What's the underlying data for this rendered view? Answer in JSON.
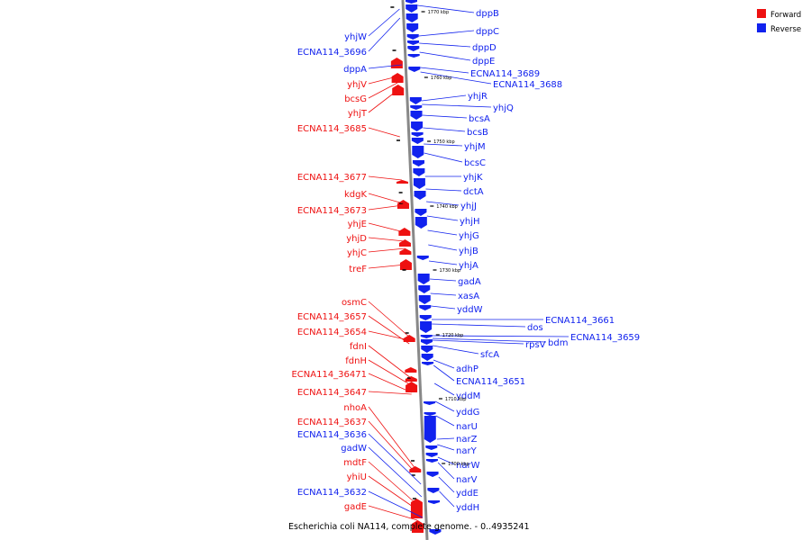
{
  "caption": "Escherichia coli NA114, complete genome. - 0..4935241",
  "legend": [
    {
      "label": "Forward",
      "color": "#ee1111"
    },
    {
      "label": "Reverse",
      "color": "#1122ee"
    }
  ],
  "colors": {
    "forward": "#ee1111",
    "reverse": "#1122ee",
    "backbone": "#888888"
  },
  "ticks": [
    "1770 kbp",
    "1760 kbp",
    "1750 kbp",
    "1740 kbp",
    "1730 kbp",
    "1720 kbp",
    "1710 kbp",
    "1700 kbp"
  ],
  "reverse_labels": [
    "dppB",
    "dppC",
    "dppD",
    "dppE",
    "ECNA114_3689",
    "ECNA114_3688",
    "yhjR",
    "yhjQ",
    "bcsA",
    "bcsB",
    "yhjM",
    "bcsC",
    "yhjK",
    "dctA",
    "yhjJ",
    "yhjH",
    "yhjG",
    "yhjB",
    "yhjA",
    "gadA",
    "xasA",
    "yddW",
    "ECNA114_3661",
    "dos",
    "ECNA114_3659",
    "bdm",
    "rpsV",
    "sfcA",
    "adhP",
    "ECNA114_3651",
    "yddM",
    "yddG",
    "narU",
    "narZ",
    "narY",
    "narW",
    "narV",
    "yddE",
    "yddH"
  ],
  "left_labels": [
    {
      "text": "yhjW",
      "strand": "reverse"
    },
    {
      "text": "ECNA114_3696",
      "strand": "reverse"
    },
    {
      "text": "dppA",
      "strand": "reverse"
    },
    {
      "text": "yhjV",
      "strand": "forward"
    },
    {
      "text": "bcsG",
      "strand": "forward"
    },
    {
      "text": "yhjT",
      "strand": "forward"
    },
    {
      "text": "ECNA114_3685",
      "strand": "forward"
    },
    {
      "text": "ECNA114_3677",
      "strand": "forward"
    },
    {
      "text": "kdgK",
      "strand": "forward"
    },
    {
      "text": "ECNA114_3673",
      "strand": "forward"
    },
    {
      "text": "yhjE",
      "strand": "forward"
    },
    {
      "text": "yhjD",
      "strand": "forward"
    },
    {
      "text": "yhjC",
      "strand": "forward"
    },
    {
      "text": "treF",
      "strand": "forward"
    },
    {
      "text": "osmC",
      "strand": "forward"
    },
    {
      "text": "ECNA114_3657",
      "strand": "forward"
    },
    {
      "text": "ECNA114_3654",
      "strand": "forward"
    },
    {
      "text": "fdnI",
      "strand": "forward"
    },
    {
      "text": "fdnH",
      "strand": "forward"
    },
    {
      "text": "ECNA114_36471",
      "strand": "forward"
    },
    {
      "text": "ECNA114_3647",
      "strand": "forward"
    },
    {
      "text": "nhoA",
      "strand": "forward"
    },
    {
      "text": "ECNA114_3637",
      "strand": "forward"
    },
    {
      "text": "ECNA114_3636",
      "strand": "reverse"
    },
    {
      "text": "gadW",
      "strand": "reverse"
    },
    {
      "text": "mdtF",
      "strand": "forward"
    },
    {
      "text": "yhiU",
      "strand": "forward"
    },
    {
      "text": "ECNA114_3632",
      "strand": "reverse"
    },
    {
      "text": "gadE",
      "strand": "forward"
    }
  ]
}
